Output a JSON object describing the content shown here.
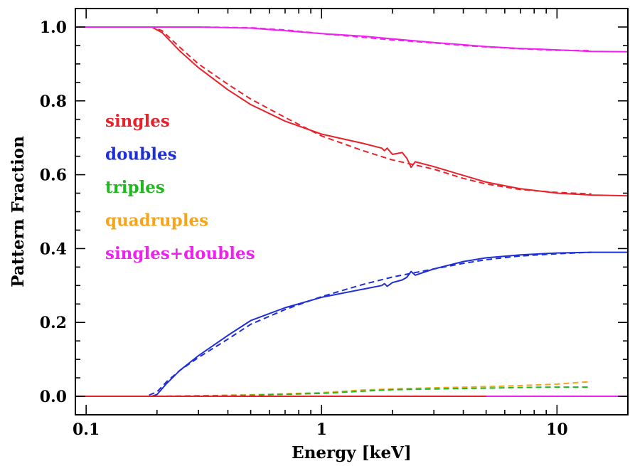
{
  "chart_data": {
    "type": "line",
    "xlabel": "Energy [keV]",
    "ylabel": "Pattern Fraction",
    "xscale": "log",
    "xlim": [
      0.09,
      20
    ],
    "ylim": [
      -0.05,
      1.05
    ],
    "grid": false,
    "legend_placement": "center-left",
    "xticks": [
      {
        "value": 0.1,
        "label": "0.1"
      },
      {
        "value": 1,
        "label": "1"
      },
      {
        "value": 10,
        "label": "10"
      }
    ],
    "yticks": [
      {
        "value": 0.0,
        "label": "0.0"
      },
      {
        "value": 0.2,
        "label": "0.2"
      },
      {
        "value": 0.4,
        "label": "0.4"
      },
      {
        "value": 0.6,
        "label": "0.6"
      },
      {
        "value": 0.8,
        "label": "0.8"
      },
      {
        "value": 1.0,
        "label": "1.0"
      }
    ],
    "legend": [
      {
        "label": "singles",
        "color": "#e8222a"
      },
      {
        "label": "doubles",
        "color": "#1f2fd6"
      },
      {
        "label": "triples",
        "color": "#1fb81f"
      },
      {
        "label": "quadruples",
        "color": "#f5a51a"
      },
      {
        "label": "singles+doubles",
        "color": "#ee22ee"
      }
    ],
    "series": [
      {
        "color": "#e8222a",
        "style": "solid",
        "x": [
          0.09,
          0.1,
          0.15,
          0.19,
          0.21,
          0.25,
          0.3,
          0.4,
          0.5,
          0.7,
          1.0,
          1.5,
          1.8,
          1.85,
          1.9,
          2.0,
          2.2,
          2.3,
          2.4,
          2.5,
          3,
          4,
          5,
          7,
          10,
          14,
          20
        ],
        "y": [
          1.0,
          1.0,
          1.0,
          1.0,
          0.985,
          0.935,
          0.89,
          0.83,
          0.79,
          0.745,
          0.71,
          0.685,
          0.672,
          0.665,
          0.672,
          0.655,
          0.66,
          0.645,
          0.62,
          0.635,
          0.622,
          0.598,
          0.58,
          0.562,
          0.55,
          0.545,
          0.543
        ]
      },
      {
        "color": "#e8222a",
        "style": "dashed",
        "x": [
          0.09,
          0.1,
          0.15,
          0.19,
          0.21,
          0.25,
          0.3,
          0.4,
          0.5,
          0.7,
          1.0,
          1.5,
          2.0,
          3,
          4,
          5,
          7,
          10,
          14
        ],
        "y": [
          1.0,
          1.0,
          1.0,
          1.0,
          0.99,
          0.945,
          0.9,
          0.845,
          0.805,
          0.755,
          0.705,
          0.665,
          0.64,
          0.615,
          0.59,
          0.575,
          0.56,
          0.552,
          0.548
        ]
      },
      {
        "color": "#1f2fd6",
        "style": "solid",
        "x": [
          0.09,
          0.19,
          0.2,
          0.22,
          0.25,
          0.3,
          0.4,
          0.5,
          0.7,
          1.0,
          1.5,
          1.8,
          1.85,
          1.9,
          2.0,
          2.2,
          2.3,
          2.4,
          2.5,
          3,
          4,
          5,
          7,
          10,
          14,
          20
        ],
        "y": [
          0.0,
          0.0,
          0.005,
          0.035,
          0.07,
          0.11,
          0.165,
          0.205,
          0.24,
          0.268,
          0.29,
          0.3,
          0.305,
          0.298,
          0.308,
          0.315,
          0.322,
          0.338,
          0.328,
          0.345,
          0.365,
          0.375,
          0.383,
          0.388,
          0.39,
          0.39
        ]
      },
      {
        "color": "#1f2fd6",
        "style": "dashed",
        "x": [
          0.09,
          0.18,
          0.2,
          0.22,
          0.25,
          0.3,
          0.4,
          0.5,
          0.7,
          1.0,
          1.5,
          2.0,
          3,
          4,
          5,
          7,
          10,
          14
        ],
        "y": [
          0.0,
          0.0,
          0.012,
          0.04,
          0.07,
          0.105,
          0.155,
          0.195,
          0.235,
          0.27,
          0.303,
          0.323,
          0.345,
          0.36,
          0.37,
          0.38,
          0.386,
          0.39
        ]
      },
      {
        "color": "#ee22ee",
        "style": "solid",
        "x": [
          0.09,
          0.1,
          0.2,
          0.3,
          0.5,
          0.7,
          1.0,
          1.5,
          2.0,
          3,
          4,
          5,
          7,
          10,
          14,
          20
        ],
        "y": [
          1.0,
          1.0,
          1.0,
          1.0,
          0.997,
          0.99,
          0.982,
          0.975,
          0.968,
          0.958,
          0.952,
          0.947,
          0.942,
          0.938,
          0.934,
          0.933
        ]
      },
      {
        "color": "#ee22ee",
        "style": "dashed",
        "x": [
          0.09,
          0.1,
          0.2,
          0.3,
          0.5,
          0.7,
          1.0,
          1.5,
          2.0,
          3,
          4,
          5,
          7,
          10,
          14
        ],
        "y": [
          1.0,
          1.0,
          1.0,
          1.0,
          0.998,
          0.992,
          0.982,
          0.972,
          0.965,
          0.957,
          0.95,
          0.946,
          0.941,
          0.937,
          0.936
        ]
      },
      {
        "color": "#f5a51a",
        "style": "dashed",
        "x": [
          0.2,
          0.5,
          1.0,
          1.5,
          2.0,
          3,
          5,
          7,
          10,
          14
        ],
        "y": [
          0.0,
          0.004,
          0.01,
          0.017,
          0.02,
          0.023,
          0.026,
          0.029,
          0.033,
          0.04
        ]
      },
      {
        "color": "#1fb81f",
        "style": "dashed",
        "x": [
          0.2,
          0.5,
          1.0,
          1.5,
          2.0,
          3,
          5,
          7,
          10,
          14
        ],
        "y": [
          0.0,
          0.003,
          0.008,
          0.014,
          0.018,
          0.02,
          0.022,
          0.024,
          0.025,
          0.025
        ]
      },
      {
        "color": "#ee22ee",
        "style": "solid",
        "x": [
          0.09,
          0.5,
          1.0,
          5,
          10,
          20
        ],
        "y": [
          0.0,
          0.0,
          0.0,
          0.0,
          0.0,
          0.0
        ]
      },
      {
        "color": "#e8222a",
        "style": "solid",
        "x": [
          0.09,
          1.0,
          5
        ],
        "y": [
          0.0,
          0.0,
          0.0
        ]
      }
    ]
  }
}
